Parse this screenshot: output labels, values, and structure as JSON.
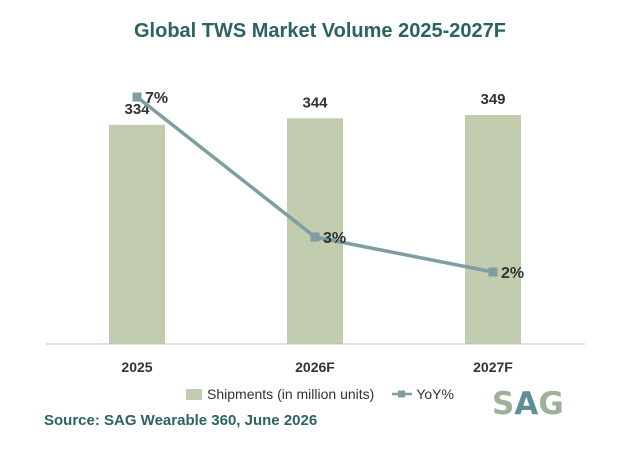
{
  "chart_data": {
    "type": "bar",
    "title": "Global TWS Market Volume 2025-2027F",
    "categories": [
      "2025",
      "2026F",
      "2027F"
    ],
    "series": [
      {
        "name": "Shipments (in million units)",
        "type": "bar",
        "values": [
          334,
          344,
          349
        ],
        "labels": [
          "334",
          "344",
          "349"
        ],
        "color": "#c2ccaf"
      },
      {
        "name": "YoY%",
        "type": "line",
        "values": [
          7,
          3,
          2
        ],
        "labels": [
          "7%",
          "3%",
          "2%"
        ],
        "color": "#7f9ea1"
      }
    ],
    "grid": false,
    "legend_position": "bottom"
  },
  "source": "Source: SAG Wearable 360, June 2026",
  "logo": {
    "letters": [
      "S",
      "A",
      "G"
    ],
    "text": "SAG"
  },
  "colors": {
    "title": "#2b6361",
    "bar": "#c2ccaf",
    "line": "#7f9ea1",
    "axis": "#bfbfbf"
  }
}
